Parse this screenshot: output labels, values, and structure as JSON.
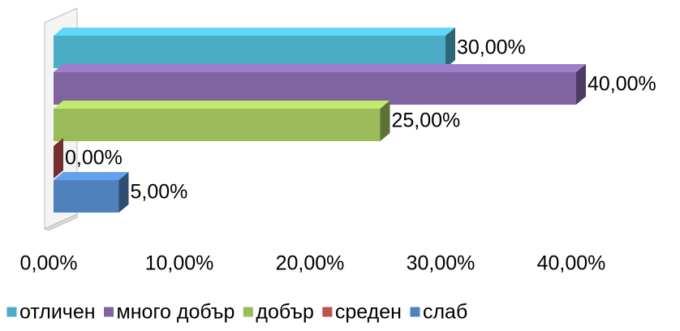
{
  "chart_data": {
    "type": "bar3d_horizontal",
    "series": [
      {
        "name": "отличен",
        "color": "#4bacc6",
        "values": [
          30
        ],
        "value_labels": [
          "30,00%"
        ]
      },
      {
        "name": "много добър",
        "color": "#8064a2",
        "values": [
          40
        ],
        "value_labels": [
          "40,00%"
        ]
      },
      {
        "name": "добър",
        "color": "#9bbb59",
        "values": [
          25
        ],
        "value_labels": [
          "25,00%"
        ]
      },
      {
        "name": "среден",
        "color": "#c0504d",
        "values": [
          0
        ],
        "value_labels": [
          "0,00%"
        ]
      },
      {
        "name": "слаб",
        "color": "#4f81bd",
        "values": [
          5
        ],
        "value_labels": [
          "5,00%"
        ]
      }
    ],
    "xlim": [
      0,
      40
    ],
    "xticks": [
      {
        "value": 0,
        "label": "0,00%"
      },
      {
        "value": 10,
        "label": "10,00%"
      },
      {
        "value": 20,
        "label": "20,00%"
      },
      {
        "value": 30,
        "label": "30,00%"
      },
      {
        "value": 40,
        "label": "40,00%"
      }
    ],
    "legend": "bottom"
  }
}
